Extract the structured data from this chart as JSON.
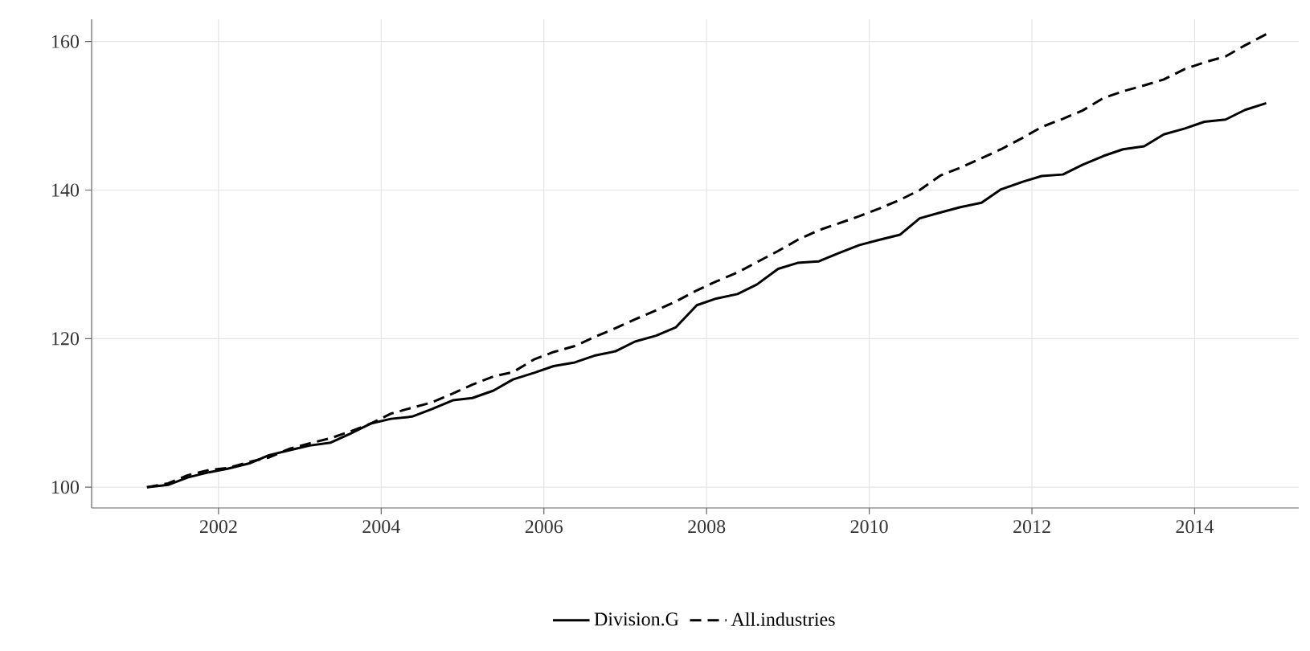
{
  "chart_data": {
    "type": "line",
    "x": [
      2001.125,
      2001.375,
      2001.625,
      2001.875,
      2002.125,
      2002.375,
      2002.625,
      2002.875,
      2003.125,
      2003.375,
      2003.625,
      2003.875,
      2004.125,
      2004.375,
      2004.625,
      2004.875,
      2005.125,
      2005.375,
      2005.625,
      2005.875,
      2006.125,
      2006.375,
      2006.625,
      2006.875,
      2007.125,
      2007.375,
      2007.625,
      2007.875,
      2008.125,
      2008.375,
      2008.625,
      2008.875,
      2009.125,
      2009.375,
      2009.625,
      2009.875,
      2010.125,
      2010.375,
      2010.625,
      2010.875,
      2011.125,
      2011.375,
      2011.625,
      2011.875,
      2012.125,
      2012.375,
      2012.625,
      2012.875,
      2013.125,
      2013.375,
      2013.625,
      2013.875,
      2014.125,
      2014.375,
      2014.625,
      2014.875
    ],
    "series": [
      {
        "name": "Division.G",
        "color": "#000000",
        "line_style": "solid",
        "values": [
          100,
          100.3,
          101.3,
          102.0,
          102.5,
          103.2,
          104.3,
          105.0,
          105.6,
          106.0,
          107.2,
          108.6,
          109.2,
          109.5,
          110.5,
          111.7,
          112.0,
          113.0,
          114.5,
          115.4,
          116.3,
          116.8,
          117.7,
          118.3,
          119.6,
          120.4,
          121.5,
          124.5,
          125.4,
          126.0,
          127.3,
          129.4,
          130.2,
          130.4,
          131.5,
          132.6,
          133.3,
          134.0,
          136.2,
          137.0,
          137.7,
          138.3,
          140.1,
          141.1,
          141.9,
          142.1,
          143.4,
          144.6,
          145.5,
          145.9,
          147.5,
          148.3,
          149.2,
          149.5,
          150.8,
          151.7
        ]
      },
      {
        "name": "All.industries",
        "color": "#000000",
        "line_style": "dashed",
        "values": [
          100,
          100.5,
          101.6,
          102.3,
          102.6,
          103.4,
          104.0,
          105.2,
          105.9,
          106.6,
          107.5,
          108.6,
          109.9,
          110.7,
          111.4,
          112.6,
          113.8,
          114.9,
          115.5,
          117.2,
          118.2,
          119.0,
          120.2,
          121.4,
          122.6,
          123.8,
          125.0,
          126.5,
          127.7,
          128.9,
          130.3,
          131.8,
          133.3,
          134.6,
          135.5,
          136.5,
          137.5,
          138.7,
          140.0,
          142.0,
          143.0,
          144.3,
          145.5,
          147.0,
          148.5,
          149.6,
          150.7,
          152.4,
          153.3,
          154.1,
          154.9,
          156.3,
          157.2,
          158.0,
          159.5,
          161.0
        ]
      }
    ],
    "xlim": [
      2000.44,
      2015.28
    ],
    "ylim": [
      97.2,
      163
    ],
    "xticks": [
      2002,
      2004,
      2006,
      2008,
      2010,
      2012,
      2014
    ],
    "yticks": [
      100,
      120,
      140,
      160
    ],
    "grid": true,
    "legend": "bottom"
  }
}
